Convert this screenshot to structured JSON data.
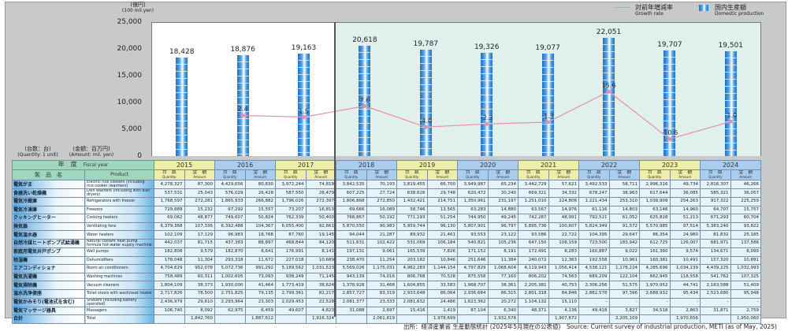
{
  "units": {
    "left_jp": "(億円)",
    "left_en": "(100 mil.yen)",
    "qty_jp": "(台数：台)",
    "qty_en": "(Quantity: 1 unit)",
    "amt_jp": "(金額：百万円)",
    "amt_en": "(Amount: mil. yen)"
  },
  "legend": {
    "growth_jp": "対前年増減率",
    "growth_en": "Growth rate",
    "domestic_jp": "国内生産額",
    "domestic_en": "Domestic production"
  },
  "colors": {
    "bar": "#3d8fd8",
    "growth": "#e88fb0",
    "mint": "#e0f0ec"
  },
  "chart_data": {
    "type": "bar",
    "categories": [
      "2015",
      "2016",
      "2017",
      "2018",
      "2019",
      "2020",
      "2021",
      "2022",
      "2023",
      "2024"
    ],
    "series": [
      {
        "name": "Domestic production",
        "values": [
          18428,
          18876,
          19163,
          20618,
          19787,
          19326,
          19077,
          22051,
          19707,
          19501
        ],
        "labels": [
          "18,428",
          "18,876",
          "19,163",
          "20,618",
          "19,787",
          "19,326",
          "19,077",
          "22,051",
          "19,707",
          "19,501"
        ]
      },
      {
        "name": "Growth rate",
        "type": "line",
        "values": [
          null,
          2.4,
          1.5,
          7.6,
          -4.0,
          -2.3,
          -1.3,
          15.6,
          -10.6,
          -1.0
        ],
        "labels": [
          "",
          "2.4",
          "1.5",
          "7.6",
          "-4.0",
          "-2.3",
          "-1.3",
          "15.6",
          "-10.6",
          "-1.0"
        ]
      }
    ],
    "yticks": [
      "0",
      "5,000",
      "10,000",
      "15,000",
      "20,000",
      "25,000"
    ],
    "ylim": [
      0,
      25000
    ],
    "ylabel": "(億円) (100 mil.yen)"
  },
  "table": {
    "fy_jp": "年　度",
    "fy_en": "Fiscal year",
    "prod_jp": "製　品　名",
    "prod_en": "Product",
    "qty_jp": "台　数",
    "qty_en": "Quantity",
    "amt_jp": "金　額",
    "amt_en": "Amount",
    "rows": [
      {
        "jp": "電気がま",
        "en": "Electric rice cookers (including rice cooker /warmers)",
        "v": [
          "4,278,327",
          "87,300",
          "4,429,656",
          "80,830",
          "3,972,244",
          "74,819",
          "3,842,535",
          "70,193",
          "3,819,455",
          "66,700",
          "3,949,987",
          "65,234",
          "3,442,729",
          "57,621",
          "3,492,533",
          "58,711",
          "2,996,316",
          "49,734",
          "2,816,307",
          "46,266"
        ]
      },
      {
        "jp": "食器洗い乾燥機",
        "en": "Dish washers (including with dish dryers)",
        "v": [
          "537,531",
          "25,043",
          "576,029",
          "26,428",
          "587,550",
          "26,479",
          "607,225",
          "27,724",
          "638,626",
          "29,748",
          "620,472",
          "30,240",
          "669,321",
          "34,332",
          "678,247",
          "38,963",
          "617,644",
          "36,085",
          "585,321",
          "36,057"
        ]
      },
      {
        "jp": "電気冷蔵庫",
        "en": "Refrigerators with freezer",
        "v": [
          "1,768,597",
          "272,281",
          "1,865,933",
          "266,882",
          "1,796,026",
          "272,397",
          "1,806,868",
          "272,850",
          "1,432,421",
          "214,751",
          "1,350,961",
          "231,197",
          "1,251,010",
          "224,806",
          "1,221,434",
          "253,310",
          "1,038,909",
          "254,263",
          "917,322",
          "225,259"
        ]
      },
      {
        "jp": "電気冷凍庫",
        "en": "Freezers",
        "v": [
          "729,889",
          "15,232",
          "67,292",
          "15,557",
          "73,207",
          "16,813",
          "69,666",
          "16,089",
          "58,746",
          "13,565",
          "63,283",
          "14,880",
          "63,567",
          "14,976",
          "61,116",
          "14,803",
          "63,146",
          "14,960",
          "64,707",
          "15,757"
        ]
      },
      {
        "jp": "クッキングヒーター",
        "en": "Cooking heaters",
        "v": [
          "69,062",
          "48,877",
          "749,607",
          "50,824",
          "762,339",
          "50,400",
          "768,867",
          "50,192",
          "771,193",
          "51,254",
          "744,950",
          "49,245",
          "742,287",
          "48,991",
          "792,521",
          "61,052",
          "625,828",
          "51,213",
          "671,293",
          "60,704"
        ]
      },
      {
        "jp": "換気扇",
        "en": "Ventilating fans",
        "v": [
          "6,379,368",
          "107,336",
          "6,392,488",
          "104,367",
          "6,055,400",
          "92,661",
          "5,870,550",
          "90,983",
          "5,959,744",
          "96,130",
          "5,807,901",
          "96,797",
          "5,895,736",
          "100,607",
          "5,824,349",
          "91,572",
          "5,570,985",
          "97,514",
          "5,383,240",
          "93,822"
        ]
      },
      {
        "jp": "電気温水器",
        "en": "Water heaters",
        "v": [
          "102,109",
          "17,129",
          "96,983",
          "18,768",
          "87,760",
          "19,145",
          "94,044",
          "21,287",
          "89,932",
          "21,461",
          "93,553",
          "23,122",
          "93,586",
          "22,722",
          "104,395",
          "29,647",
          "86,354",
          "24,980",
          "81,832",
          "25,185"
        ]
      },
      {
        "jp": "自然冷媒ヒートポンプ式給湯機",
        "en": "Natural coolant heat pump formula hot-water supply machine",
        "v": [
          "442,037",
          "81,715",
          "437,383",
          "88,897",
          "468,844",
          "94,120",
          "511,631",
          "102,422",
          "531,069",
          "106,184",
          "540,821",
          "105,236",
          "647,150",
          "108,159",
          "723,500",
          "183,942",
          "612,725",
          "126,007",
          "681,971",
          "137,586"
        ]
      },
      {
        "jp": "家庭用電気井戸ポンプ",
        "en": "Well pumps",
        "v": [
          "182,808",
          "9,579",
          "182,870",
          "8,641",
          "176,991",
          "8,141",
          "197,131",
          "9,061",
          "165,539",
          "7,826",
          "171,152",
          "8,191",
          "172,491",
          "8,283",
          "160,887",
          "9,022",
          "161,360",
          "9,574",
          "134,671",
          "8,099"
        ]
      },
      {
        "jp": "除湿機",
        "en": "Dehumidifiers",
        "v": [
          "178,048",
          "11,304",
          "293,318",
          "11,672",
          "227,018",
          "10,689",
          "238,470",
          "11,254",
          "203,182",
          "10,846",
          "251,646",
          "11,384",
          "240,072",
          "12,363",
          "192,558",
          "10,961",
          "160,381",
          "10,491",
          "157,320",
          "10,891"
        ]
      },
      {
        "jp": "エアコンディショナ",
        "en": "Room air conditioners",
        "v": [
          "4,704,629",
          "952,078",
          "5,072,736",
          "991,292",
          "5,189,562",
          "1,031,523",
          "5,569,026",
          "1,175,031",
          "4,962,283",
          "1,144,154",
          "4,797,829",
          "1,068,604",
          "4,119,943",
          "1,056,414",
          "4,538,121",
          "1,178,224",
          "4,285,696",
          "1,034,239",
          "4,439,225",
          "1,032,993"
        ]
      },
      {
        "jp": "電気洗濯機",
        "en": "Washing machines",
        "v": [
          "758,489",
          "60,311",
          "1,002,605",
          "73,093",
          "938,249",
          "71,145",
          "943,139",
          "74,016",
          "806,768",
          "70,528",
          "875,558",
          "77,160",
          "806,202",
          "74,563",
          "689,209",
          "122,104",
          "662,945",
          "118,558",
          "541,762",
          "107,325"
        ]
      },
      {
        "jp": "電気掃除機",
        "en": "Vacuum cleaners",
        "v": [
          "1,804,109",
          "38,373",
          "1,930,000",
          "41,464",
          "1,773,419",
          "38,624",
          "1,378,928",
          "31,468",
          "1,604,855",
          "33,583",
          "1,968,707",
          "38,361",
          "2,205,381",
          "40,753",
          "2,306,256",
          "51,575",
          "1,970,952",
          "44,741",
          "2,163,588",
          "51,409"
        ]
      },
      {
        "jp": "温水洗浄便座",
        "en": "Toilet stools with wash/seat heater",
        "v": [
          "2,717,826",
          "78,500",
          "2,751,825",
          "79,135",
          "2,799,361",
          "82,217",
          "2,857,727",
          "83,319",
          "2,933,648",
          "86,064",
          "2,936,684",
          "86,315",
          "2,801,318",
          "84,846",
          "2,882,578",
          "97,396",
          "2,688,932",
          "95,434",
          "2,523,680",
          "95,948"
        ]
      },
      {
        "jp": "電気かみそり(電池式を含む)",
        "en": "Shavers (including battery operated)",
        "v": [
          "2,436,979",
          "29,610",
          "2,293,964",
          "23,303",
          "2,029,453",
          "22,528",
          "2,081,377",
          "23,333",
          "2,081,632",
          "24,486",
          "1,623,362",
          "20,272",
          "1,104,132",
          "15,110",
          "-",
          "-",
          "-",
          "-",
          "-",
          "-"
        ]
      },
      {
        "jp": "電気マッサージ器具",
        "en": "Massagers",
        "v": [
          "106,740",
          "8,092",
          "62,975",
          "6,459",
          "49,607",
          "4,623",
          "31,088",
          "2,697",
          "15,416",
          "1,419",
          "87,104",
          "6,340",
          "48,371",
          "4,136",
          "49,418",
          "3,827",
          "34,518",
          "2,863",
          "31,871",
          "2,759"
        ]
      },
      {
        "jp": "合計",
        "en": "Total",
        "v": [
          "",
          "1,842,760",
          "",
          "1,887,612",
          "",
          "1,916,324",
          "",
          "2,061,819",
          "",
          "1,978,699",
          "",
          "1,932,578",
          "",
          "1,907,672",
          "",
          "2,205,109",
          "",
          "1,970,656",
          "",
          "1,950,060"
        ]
      }
    ]
  },
  "source": "出所：経済産業省 生産動態統計 (2025年5月現在の公表値)　Source: Current survey of industrial production, METI (as of May, 2025)"
}
